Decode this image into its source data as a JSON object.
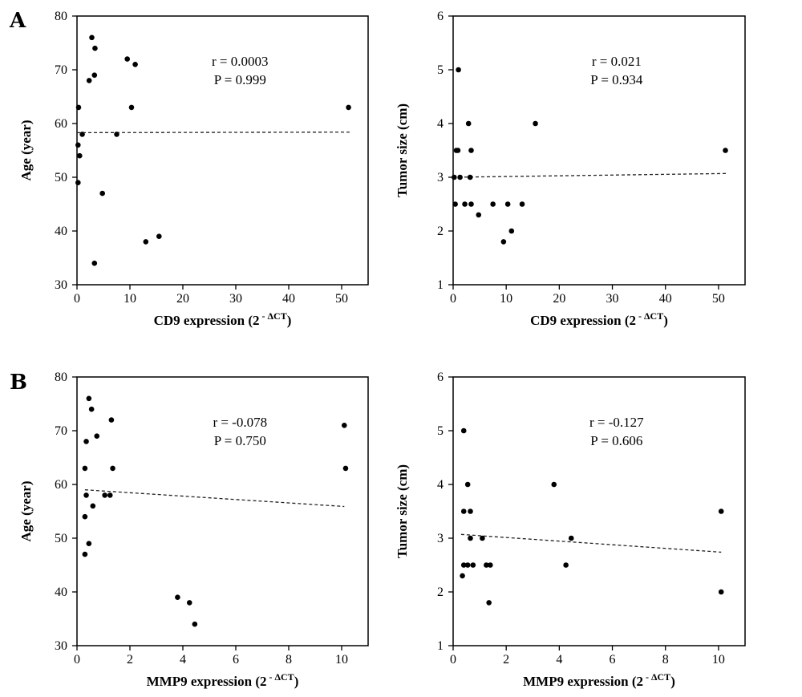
{
  "panel_labels": [
    "A",
    "B"
  ],
  "chart_data": [
    {
      "type": "scatter",
      "panel": "A",
      "xlabel": "CD9 expression",
      "xlabel_expr": "2",
      "xlabel_sup": " - ΔCT",
      "ylabel": "Age (year)",
      "xlim": [
        0,
        55
      ],
      "ylim": [
        30,
        80
      ],
      "xticks": [
        0,
        10,
        20,
        30,
        40,
        50
      ],
      "yticks": [
        30,
        40,
        50,
        60,
        70,
        80
      ],
      "annotation": [
        "r = 0.0003",
        "P = 0.999"
      ],
      "trend": {
        "x": [
          0,
          51.5
        ],
        "y": [
          58.3,
          58.4
        ]
      },
      "points": [
        {
          "x": 0.3,
          "y": 63
        },
        {
          "x": 0.2,
          "y": 56
        },
        {
          "x": 0.5,
          "y": 54
        },
        {
          "x": 0.2,
          "y": 49
        },
        {
          "x": 1.0,
          "y": 58
        },
        {
          "x": 2.3,
          "y": 68
        },
        {
          "x": 2.8,
          "y": 76
        },
        {
          "x": 3.4,
          "y": 74
        },
        {
          "x": 3.3,
          "y": 69
        },
        {
          "x": 4.8,
          "y": 47
        },
        {
          "x": 3.3,
          "y": 34
        },
        {
          "x": 7.5,
          "y": 58
        },
        {
          "x": 9.5,
          "y": 72
        },
        {
          "x": 11.0,
          "y": 71
        },
        {
          "x": 10.3,
          "y": 63
        },
        {
          "x": 13.0,
          "y": 38
        },
        {
          "x": 15.5,
          "y": 39
        },
        {
          "x": 51.3,
          "y": 63
        }
      ]
    },
    {
      "type": "scatter",
      "panel": "A",
      "xlabel": "CD9 expression",
      "xlabel_expr": "2",
      "xlabel_sup": " - ΔCT",
      "ylabel": "Tumor size (cm)",
      "xlim": [
        0,
        55
      ],
      "ylim": [
        1,
        6
      ],
      "xticks": [
        0,
        10,
        20,
        30,
        40,
        50
      ],
      "yticks": [
        1,
        2,
        3,
        4,
        5,
        6
      ],
      "annotation": [
        "r = 0.021",
        "P = 0.934"
      ],
      "trend": {
        "x": [
          0,
          51.5
        ],
        "y": [
          3.0,
          3.07
        ]
      },
      "points": [
        {
          "x": 0.2,
          "y": 3.0
        },
        {
          "x": 0.4,
          "y": 2.5
        },
        {
          "x": 0.6,
          "y": 3.5
        },
        {
          "x": 0.9,
          "y": 3.5
        },
        {
          "x": 1.0,
          "y": 5.0
        },
        {
          "x": 1.3,
          "y": 3.0
        },
        {
          "x": 2.2,
          "y": 2.5
        },
        {
          "x": 2.9,
          "y": 4.0
        },
        {
          "x": 3.2,
          "y": 3.0
        },
        {
          "x": 3.4,
          "y": 3.5
        },
        {
          "x": 3.4,
          "y": 2.5
        },
        {
          "x": 4.8,
          "y": 2.3
        },
        {
          "x": 7.5,
          "y": 2.5
        },
        {
          "x": 9.5,
          "y": 1.8
        },
        {
          "x": 10.3,
          "y": 2.5
        },
        {
          "x": 11.0,
          "y": 2.0
        },
        {
          "x": 13.0,
          "y": 2.5
        },
        {
          "x": 15.5,
          "y": 4.0
        },
        {
          "x": 51.3,
          "y": 3.5
        }
      ]
    },
    {
      "type": "scatter",
      "panel": "B",
      "xlabel": "MMP9 expression",
      "xlabel_expr": "2",
      "xlabel_sup": " - ΔCT",
      "ylabel": "Age (year)",
      "xlim": [
        0,
        11
      ],
      "ylim": [
        30,
        80
      ],
      "xticks": [
        0,
        2,
        4,
        6,
        8,
        10
      ],
      "yticks": [
        30,
        40,
        50,
        60,
        70,
        80
      ],
      "annotation": [
        "r = -0.078",
        "P = 0.750"
      ],
      "trend": {
        "x": [
          0.3,
          10.1
        ],
        "y": [
          59.0,
          55.9
        ]
      },
      "points": [
        {
          "x": 0.45,
          "y": 76
        },
        {
          "x": 0.55,
          "y": 74
        },
        {
          "x": 0.75,
          "y": 69
        },
        {
          "x": 0.35,
          "y": 68
        },
        {
          "x": 0.3,
          "y": 63
        },
        {
          "x": 0.35,
          "y": 58
        },
        {
          "x": 0.6,
          "y": 56
        },
        {
          "x": 0.3,
          "y": 54
        },
        {
          "x": 0.45,
          "y": 49
        },
        {
          "x": 0.3,
          "y": 47
        },
        {
          "x": 1.3,
          "y": 72
        },
        {
          "x": 1.35,
          "y": 63
        },
        {
          "x": 1.05,
          "y": 58
        },
        {
          "x": 1.25,
          "y": 58
        },
        {
          "x": 3.8,
          "y": 39
        },
        {
          "x": 4.25,
          "y": 38
        },
        {
          "x": 4.45,
          "y": 34
        },
        {
          "x": 10.1,
          "y": 71
        },
        {
          "x": 10.15,
          "y": 63
        }
      ]
    },
    {
      "type": "scatter",
      "panel": "B",
      "xlabel": "MMP9 expression",
      "xlabel_expr": "2",
      "xlabel_sup": " - ΔCT",
      "ylabel": "Tumor size (cm)",
      "xlim": [
        0,
        11
      ],
      "ylim": [
        1,
        6
      ],
      "xticks": [
        0,
        2,
        4,
        6,
        8,
        10
      ],
      "yticks": [
        1,
        2,
        3,
        4,
        5,
        6
      ],
      "annotation": [
        "r = -0.127",
        "P = 0.606"
      ],
      "trend": {
        "x": [
          0.3,
          10.1
        ],
        "y": [
          3.07,
          2.74
        ]
      },
      "points": [
        {
          "x": 0.4,
          "y": 5.0
        },
        {
          "x": 0.55,
          "y": 4.0
        },
        {
          "x": 0.4,
          "y": 3.5
        },
        {
          "x": 0.65,
          "y": 3.5
        },
        {
          "x": 0.65,
          "y": 3.0
        },
        {
          "x": 0.4,
          "y": 2.5
        },
        {
          "x": 0.55,
          "y": 2.5
        },
        {
          "x": 0.75,
          "y": 2.5
        },
        {
          "x": 0.35,
          "y": 2.3
        },
        {
          "x": 1.1,
          "y": 3.0
        },
        {
          "x": 1.25,
          "y": 2.5
        },
        {
          "x": 1.4,
          "y": 2.5
        },
        {
          "x": 1.35,
          "y": 1.8
        },
        {
          "x": 3.8,
          "y": 4.0
        },
        {
          "x": 4.45,
          "y": 3.0
        },
        {
          "x": 4.25,
          "y": 2.5
        },
        {
          "x": 10.1,
          "y": 3.5
        },
        {
          "x": 10.1,
          "y": 2.0
        }
      ]
    }
  ]
}
